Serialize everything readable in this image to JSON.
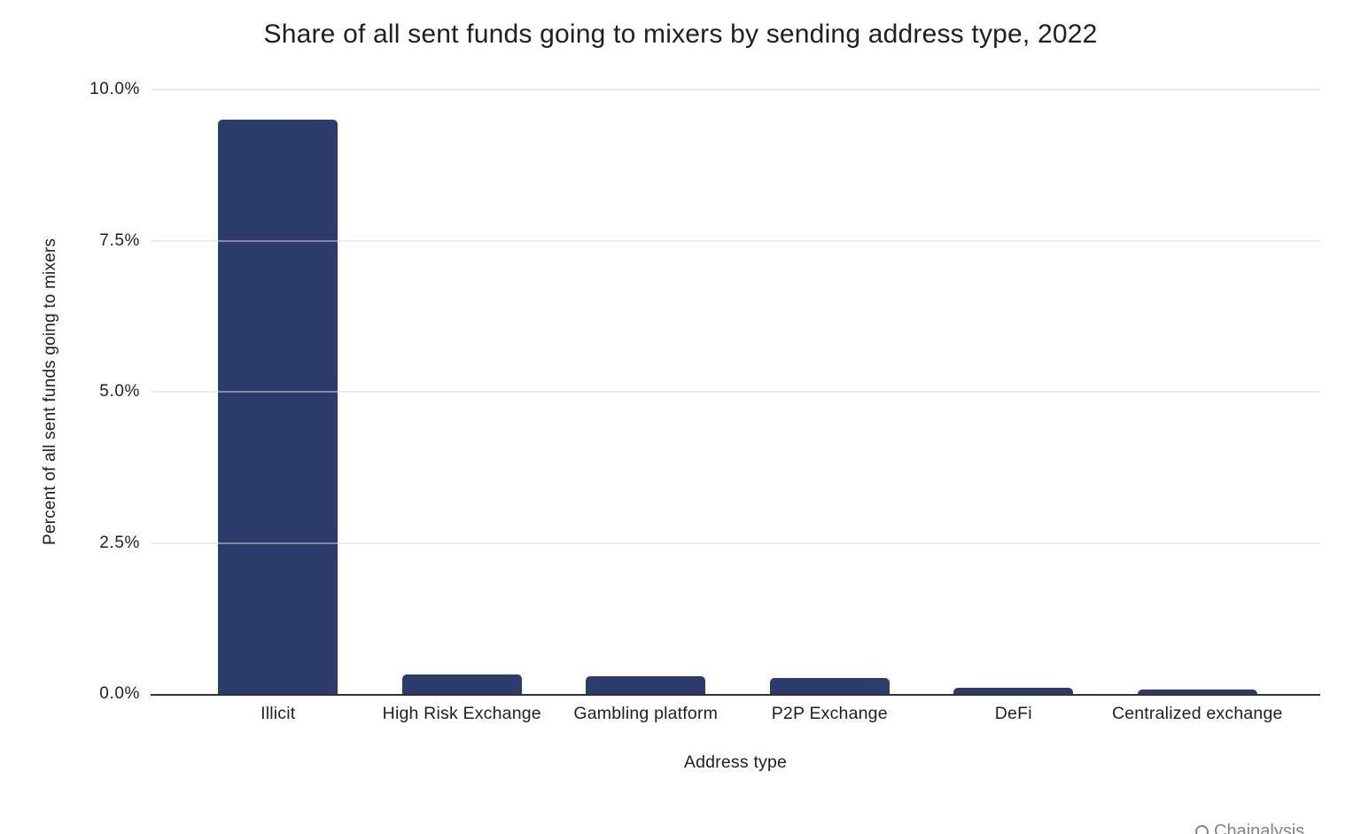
{
  "page": {
    "background": "#ffffff"
  },
  "chart_data": {
    "type": "bar",
    "title": "Share of all sent funds going to mixers by sending address type, 2022",
    "categories": [
      "Illicit",
      "High Risk Exchange",
      "Gambling platform",
      "P2P Exchange",
      "DeFi",
      "Centralized exchange"
    ],
    "values": [
      9.5,
      0.33,
      0.29,
      0.27,
      0.1,
      0.07
    ],
    "xlabel": "Address type",
    "ylabel": "Percent of all sent funds going to mixers",
    "ylim": [
      0,
      10
    ],
    "yticks": [
      0,
      2.5,
      5,
      7.5,
      10
    ],
    "ytick_labels": [
      "0.0%",
      "2.5%",
      "5.0%",
      "7.5%",
      "10.0%"
    ],
    "grid": true,
    "legend": "none",
    "bar_color": "#2b3c6b"
  },
  "colors": {
    "bar": "#2b3c6b",
    "gridline": "#d9d9d9",
    "axis_line": "#333333",
    "text": "#1f1f1f",
    "watermark": "#6e6e6e"
  },
  "watermark": {
    "icon": "chainalysis-logo",
    "text": "Chainalysis"
  }
}
